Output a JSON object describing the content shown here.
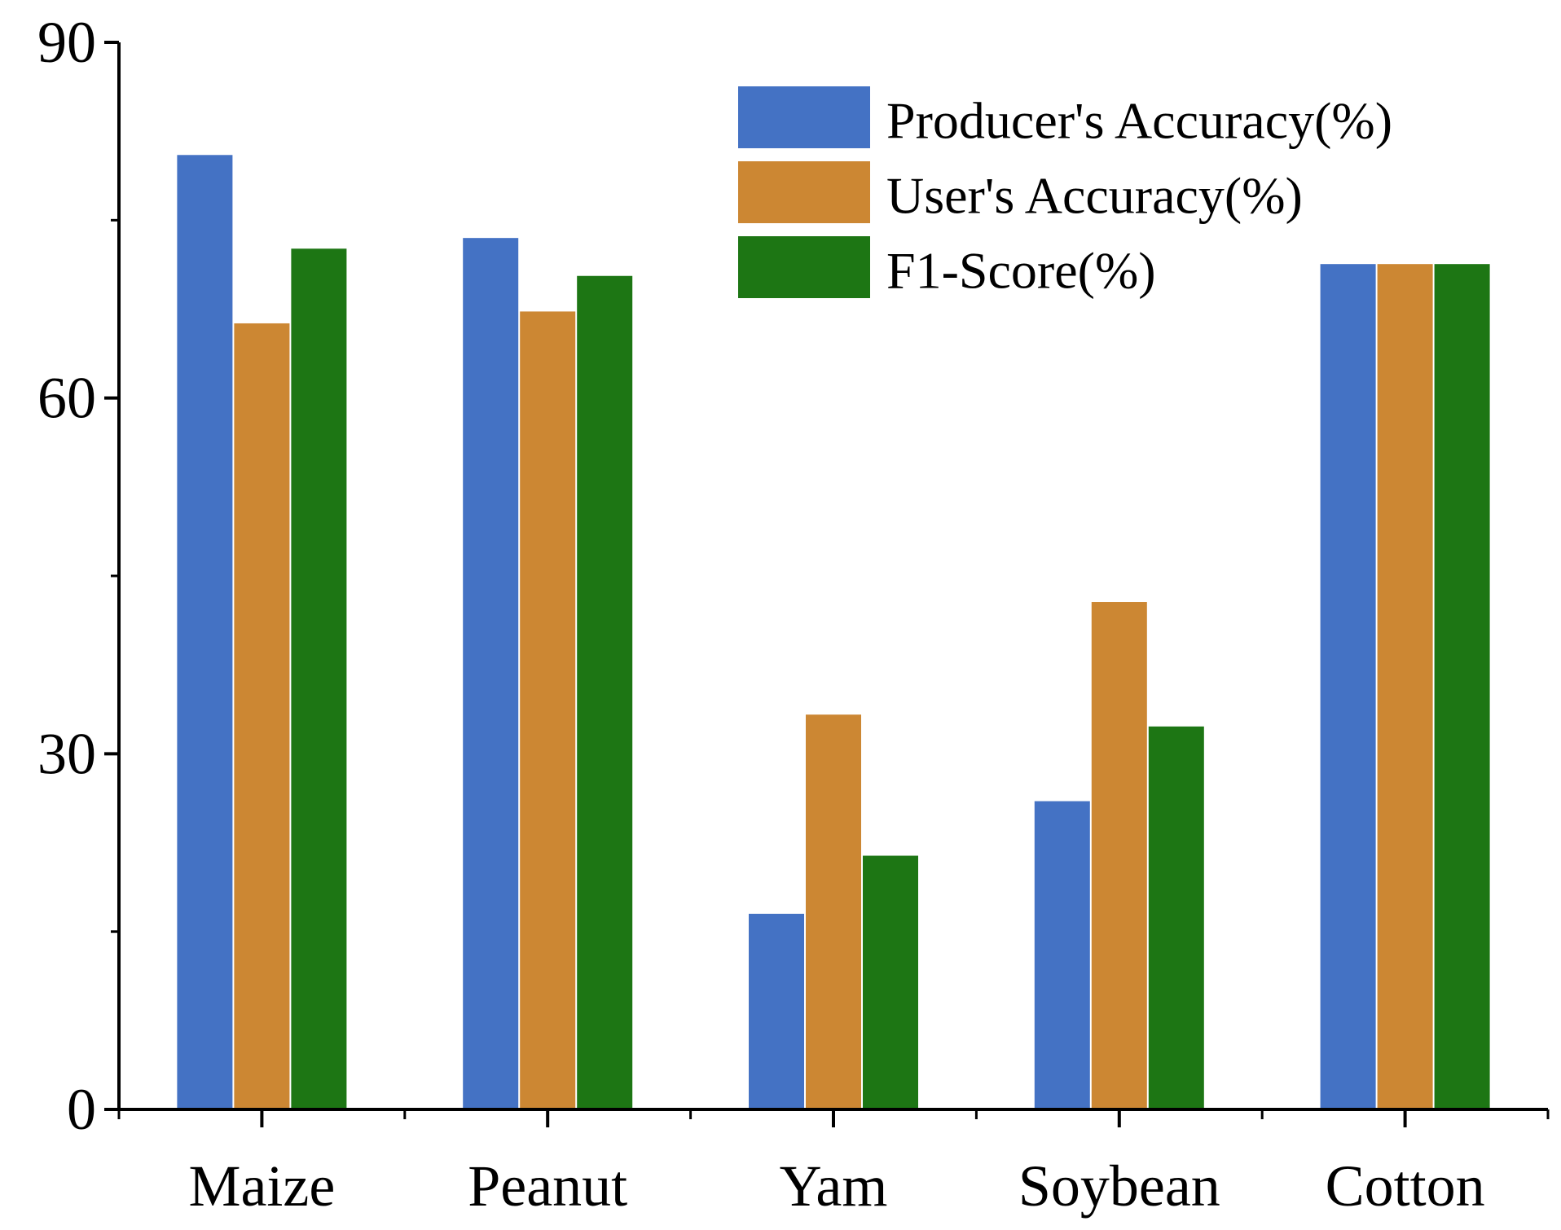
{
  "chart_data": {
    "type": "bar",
    "title": "",
    "xlabel": "",
    "ylabel": "",
    "categories": [
      "Maize",
      "Peanut",
      "Yam",
      "Soybean",
      "Cotton"
    ],
    "series": [
      {
        "name": "Producer's Accuracy(%)",
        "color": "#4472C4",
        "values": [
          80.5,
          73.5,
          16.5,
          26.0,
          71.3
        ]
      },
      {
        "name": "User's Accuracy(%)",
        "color": "#CC8733",
        "values": [
          66.3,
          67.3,
          33.3,
          42.8,
          71.3
        ]
      },
      {
        "name": "F1-Score(%)",
        "color": "#1D7614",
        "values": [
          72.6,
          70.3,
          21.4,
          32.3,
          71.3
        ]
      }
    ],
    "ylim": [
      0,
      90
    ],
    "y_major_ticks": [
      0,
      30,
      60,
      90
    ],
    "y_minor_ticks": [
      15,
      45,
      75
    ],
    "grid": false,
    "legend_position": "top-right"
  }
}
